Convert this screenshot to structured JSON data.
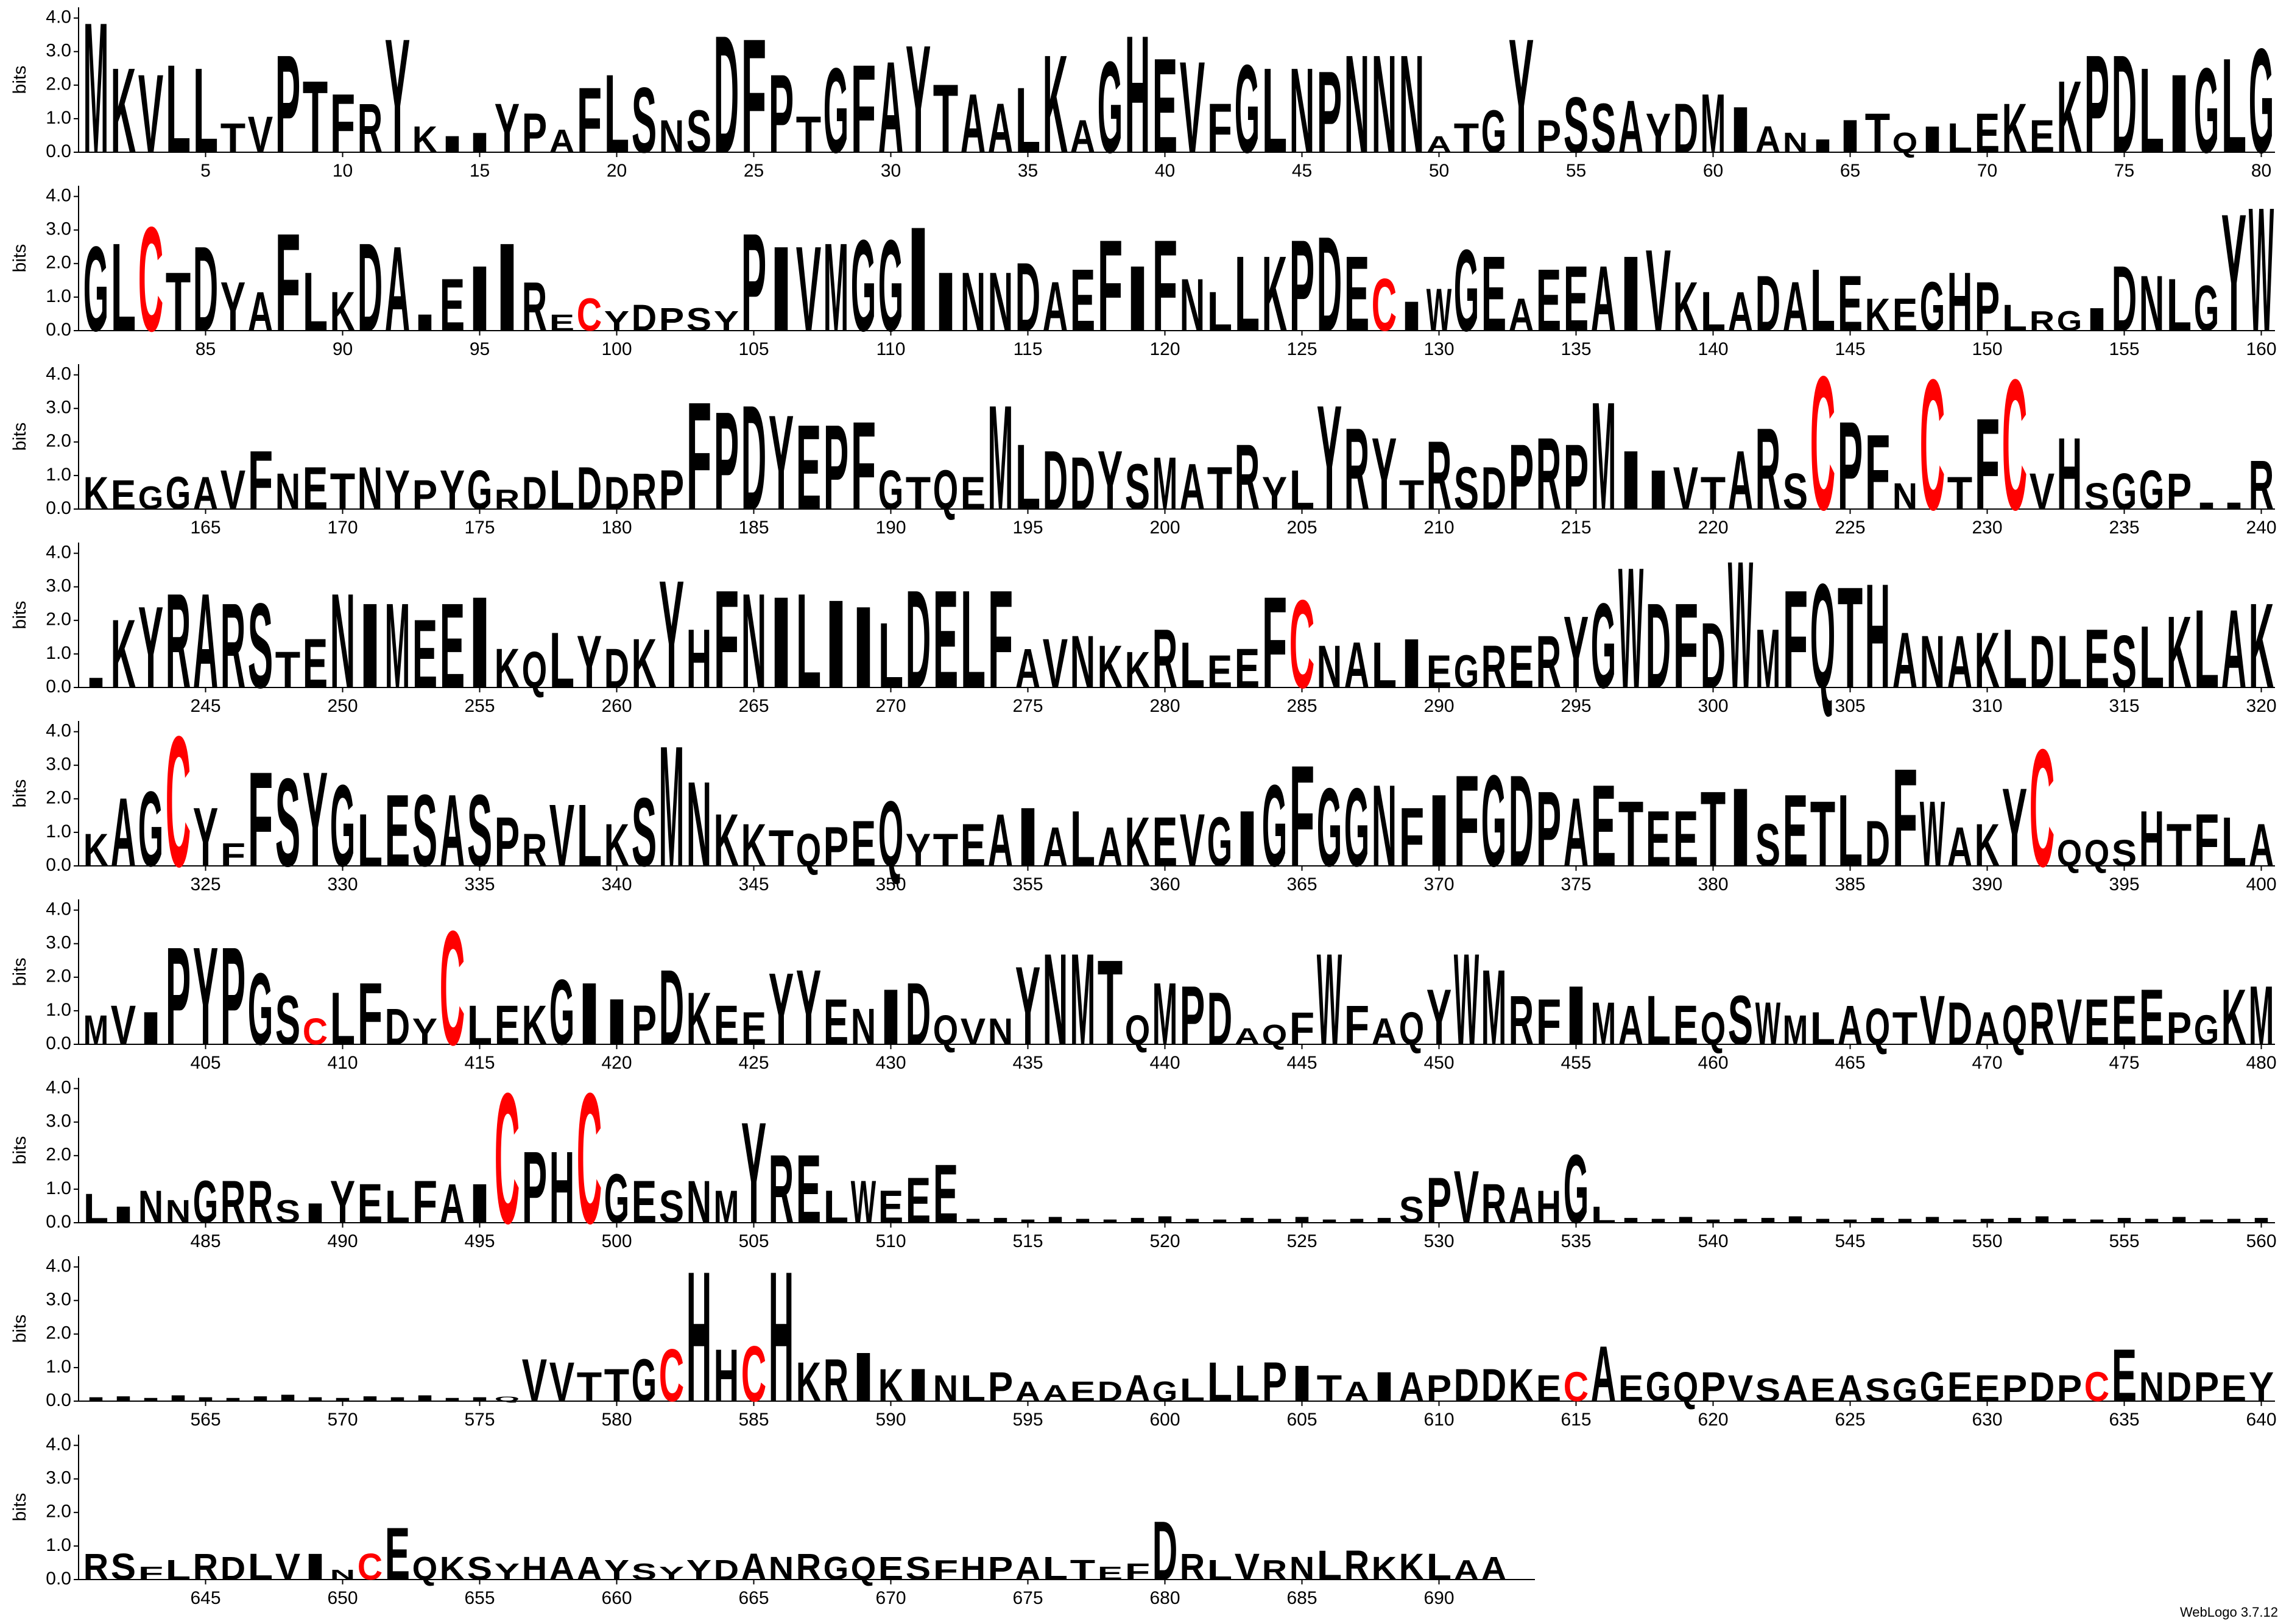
{
  "chart_data": {
    "type": "logo",
    "ylabel": "bits",
    "footer": "WebLogo 3.7.12",
    "ylim": [
      0,
      4.32
    ],
    "yticks": [
      {
        "value": 0,
        "label": "0.0"
      },
      {
        "value": 1,
        "label": "1.0"
      },
      {
        "value": 2,
        "label": "2.0"
      },
      {
        "value": 3,
        "label": "3.0"
      },
      {
        "value": 4,
        "label": "4.0"
      }
    ],
    "xticks": [
      5,
      10,
      15,
      20,
      25,
      30,
      35,
      40,
      45,
      50,
      55,
      60,
      65,
      70,
      75,
      80,
      85,
      90,
      95,
      100,
      105,
      110,
      115,
      120,
      125,
      130,
      135,
      140,
      145,
      150,
      155,
      160,
      165,
      170,
      175,
      180,
      185,
      190,
      195,
      200,
      205,
      210,
      215,
      220,
      225,
      230,
      235,
      240,
      245,
      250,
      255,
      260,
      265,
      270,
      275,
      280,
      285,
      290,
      295,
      300,
      305,
      310,
      315,
      320,
      325,
      330,
      335,
      340,
      345,
      350,
      355,
      360,
      365,
      370,
      375,
      380,
      385,
      390,
      395,
      400,
      405,
      410,
      415,
      420,
      425,
      430,
      435,
      440,
      445,
      450,
      455,
      460,
      465,
      470,
      475,
      480,
      485,
      490,
      495,
      500,
      505,
      510,
      515,
      520,
      525,
      530,
      535,
      540,
      545,
      550,
      555,
      560,
      565,
      570,
      575,
      580,
      585,
      590,
      595,
      600,
      605,
      610,
      615,
      620,
      625,
      630,
      635,
      640,
      645,
      650,
      655,
      660,
      665,
      670,
      675,
      680,
      685,
      690
    ],
    "color": "#000000",
    "highlight": {
      "letter": "C",
      "color": "#ff0000"
    },
    "sequence": "MKVLLTVPTFRYKIIYPAFLSNSDFPTGFAYTAALKAGHEVFGLNPNNNATGYPSSAYDMIANIITQILEKEKPDLIGLGGLCTDYAFLKDAIEIIRECYDPSYPIVMGGIINNDAEFIFNLLKPDECIWGEAEEAIVKLADALEKEGHPLRGIDNLGYWKEGGAVFNETNYPYGRDLDDRPFPDYEPFGTQEMLDDYSMATRYLYRYTRSDPRPMIIVTARSCPFNCTFCVHSGGPIIRIKYRARSTENIMEEIKQLYDKYHFNILIILDELFAVNKKRLEEFCNALIEGRERYGWDFDWMFQTHANAKLDLESLKLAKKAGCYFFSYGLESASPRVLKSMNKKTQPEQYTEAIALAKEVGIGFGGNFIFGDPAETEETISETLDFWAKYCQQSHTFLAMVIPYPGSCLFDYCLEKGIIPDKEEYYENIDQVNYNMTQMPDAQFWFAQYWMRFIMALEQSWMLAQTVDAQRVEEEPGKMLINNGRRSIYELFAICPHCGESNMYRELWEEEIIIIIIIIIIIIIIIISPVRAHGLIIIIIIIIIIIIIIIIIIIIIIIIIIIIIIIIIIIIIIIQVVTTGCHHCHKRIKINLPAAEDAGLLLPITAIAPDDKECAEGQPVSAEASGGEEPDPCENDPEYRSFLRDLVINCEQKSYHAAYSYYDANRGQESFHPALTEFDRLVRNLRKKLAA",
    "values": [
      4.0,
      2.6,
      2.4,
      2.7,
      2.6,
      0.9,
      1.1,
      3.0,
      2.2,
      1.8,
      1.5,
      3.5,
      0.8,
      0.5,
      0.6,
      1.5,
      1.2,
      0.7,
      2.0,
      2.4,
      2.0,
      1.0,
      1.3,
      3.6,
      3.5,
      2.4,
      1.1,
      2.6,
      2.7,
      2.8,
      3.3,
      2.1,
      1.8,
      1.5,
      2.0,
      3.0,
      1.0,
      2.8,
      3.6,
      2.9,
      2.8,
      1.5,
      2.7,
      2.6,
      2.6,
      2.5,
      3.0,
      3.0,
      3.0,
      0.5,
      0.9,
      1.3,
      3.5,
      1.0,
      1.7,
      1.5,
      1.6,
      1.2,
      1.5,
      1.8,
      1.4,
      0.8,
      0.6,
      0.4,
      1.0,
      1.2,
      0.6,
      0.8,
      0.9,
      1.2,
      1.5,
      1.0,
      2.2,
      3.0,
      3.0,
      2.6,
      2.4,
      2.6,
      2.9,
      3.2,
      2.6,
      2.7,
      3.2,
      1.8,
      2.6,
      1.5,
      1.2,
      3.0,
      1.8,
      1.2,
      2.7,
      2.6,
      0.5,
      1.6,
      2.0,
      2.7,
      1.5,
      0.5,
      1.0,
      0.6,
      0.8,
      0.7,
      0.7,
      0.6,
      3.0,
      2.6,
      2.6,
      2.7,
      2.8,
      2.8,
      3.2,
      1.8,
      1.8,
      1.8,
      2.1,
      1.5,
      1.9,
      2.8,
      2.0,
      2.8,
      1.6,
      1.2,
      2.3,
      2.3,
      2.8,
      2.9,
      2.3,
      1.6,
      0.9,
      1.3,
      2.5,
      2.3,
      1.0,
      1.9,
      2.0,
      2.0,
      2.3,
      2.5,
      1.5,
      1.2,
      1.2,
      1.7,
      1.5,
      1.9,
      1.7,
      1.0,
      1.0,
      1.5,
      1.8,
      1.5,
      0.8,
      0.6,
      0.6,
      0.7,
      2.0,
      1.7,
      1.6,
      1.4,
      3.6,
      3.8,
      1.0,
      0.9,
      0.7,
      1.0,
      1.0,
      1.2,
      1.8,
      1.1,
      1.3,
      1.1,
      1.3,
      1.2,
      0.9,
      1.2,
      1.2,
      0.6,
      1.0,
      1.2,
      1.3,
      1.0,
      1.1,
      1.2,
      3.3,
      3.0,
      3.2,
      2.9,
      2.6,
      2.6,
      2.7,
      1.2,
      1.0,
      1.2,
      1.0,
      3.2,
      2.0,
      1.8,
      1.6,
      1.8,
      1.4,
      1.6,
      1.4,
      1.3,
      2.0,
      1.0,
      1.2,
      3.2,
      2.5,
      2.2,
      0.9,
      2.1,
      1.3,
      1.3,
      2.0,
      2.2,
      2.0,
      3.3,
      1.8,
      1.2,
      1.3,
      1.0,
      1.8,
      2.5,
      1.1,
      4.1,
      2.7,
      2.3,
      0.8,
      4.0,
      1.0,
      2.8,
      4.0,
      1.1,
      2.2,
      0.8,
      1.1,
      1.2,
      1.1,
      0.2,
      0.2,
      1.5,
      0.3,
      2.1,
      2.5,
      2.9,
      2.9,
      2.6,
      2.6,
      1.1,
      1.5,
      2.9,
      2.6,
      2.6,
      2.1,
      2.6,
      2.8,
      1.2,
      1.1,
      1.7,
      1.6,
      1.2,
      1.5,
      3.3,
      1.8,
      3.0,
      2.9,
      2.8,
      2.9,
      2.7,
      2.5,
      2.0,
      3.0,
      3.0,
      3.0,
      3.0,
      1.2,
      1.5,
      1.6,
      1.3,
      1.1,
      1.8,
      1.4,
      1.0,
      1.2,
      2.8,
      2.7,
      1.3,
      1.4,
      1.4,
      1.5,
      1.0,
      1.0,
      1.3,
      1.3,
      1.6,
      2.2,
      2.6,
      3.7,
      2.6,
      2.6,
      2.0,
      3.9,
      1.8,
      3.0,
      3.2,
      3.1,
      3.2,
      1.7,
      1.6,
      1.6,
      1.7,
      1.8,
      1.6,
      1.6,
      1.8,
      1.6,
      1.9,
      2.2,
      2.4,
      2.4,
      2.6,
      1.0,
      2.1,
      2.3,
      4.0,
      1.8,
      0.7,
      2.9,
      2.7,
      2.9,
      2.5,
      1.6,
      2.2,
      2.2,
      2.2,
      2.2,
      1.5,
      1.0,
      1.9,
      1.9,
      1.3,
      2.1,
      3.7,
      2.6,
      1.6,
      1.3,
      1.1,
      1.0,
      1.2,
      1.4,
      2.0,
      1.0,
      1.0,
      1.3,
      1.6,
      1.8,
      1.2,
      1.7,
      1.2,
      1.5,
      1.5,
      1.6,
      1.5,
      1.7,
      2.5,
      3.1,
      2.4,
      2.4,
      2.5,
      1.8,
      2.2,
      2.8,
      2.8,
      2.8,
      2.3,
      2.1,
      2.5,
      2.0,
      1.7,
      1.7,
      2.3,
      2.4,
      1.3,
      2.2,
      2.0,
      2.2,
      1.4,
      3.0,
      2.0,
      1.2,
      1.3,
      2.4,
      3.6,
      0.8,
      0.8,
      0.8,
      1.7,
      1.3,
      1.6,
      1.5,
      1.3,
      0.9,
      1.2,
      1.0,
      3.0,
      3.0,
      3.0,
      2.2,
      1.5,
      0.8,
      1.6,
      1.9,
      1.1,
      0.8,
      3.5,
      1.2,
      1.2,
      1.2,
      2.0,
      1.9,
      1.4,
      1.2,
      2.3,
      1.6,
      1.2,
      1.0,
      2.2,
      2.3,
      1.4,
      1.1,
      1.7,
      1.9,
      0.9,
      0.8,
      0.8,
      2.4,
      2.8,
      2.8,
      2.6,
      0.9,
      1.9,
      1.8,
      1.6,
      0.5,
      0.6,
      1.0,
      2.8,
      1.2,
      0.8,
      1.0,
      1.7,
      2.8,
      2.3,
      1.5,
      1.4,
      1.8,
      1.3,
      1.2,
      1.5,
      1.2,
      1.0,
      1.5,
      1.3,
      0.9,
      1.0,
      1.2,
      1.1,
      1.0,
      1.5,
      1.3,
      1.0,
      1.2,
      1.3,
      1.4,
      1.4,
      1.5,
      1.7,
      1.0,
      0.9,
      1.7,
      1.8,
      0.9,
      0.5,
      1.0,
      0.7,
      1.3,
      1.3,
      1.3,
      0.7,
      0.6,
      1.3,
      1.2,
      1.0,
      1.3,
      1.2,
      1.2,
      4.0,
      2.2,
      2.2,
      4.0,
      1.5,
      1.3,
      1.0,
      1.3,
      1.0,
      3.1,
      2.1,
      2.1,
      1.0,
      1.3,
      1.0,
      1.4,
      1.8,
      0.12,
      0.15,
      0.1,
      0.18,
      0.12,
      0.1,
      0.15,
      0.2,
      0.12,
      0.1,
      0.15,
      0.12,
      0.18,
      0.1,
      0.12,
      0.15,
      0.8,
      1.4,
      1.6,
      1.2,
      1.1,
      1.0,
      2.1,
      0.5,
      0.15,
      0.12,
      0.18,
      0.1,
      0.12,
      0.15,
      0.2,
      0.12,
      0.1,
      0.15,
      0.12,
      0.18,
      0.1,
      0.12,
      0.15,
      0.2,
      0.12,
      0.1,
      0.15,
      0.12,
      0.18,
      0.1,
      0.12,
      0.15,
      0.12,
      0.15,
      0.1,
      0.18,
      0.12,
      0.1,
      0.15,
      0.2,
      0.12,
      0.1,
      0.15,
      0.12,
      0.18,
      0.1,
      0.12,
      0.15,
      1.3,
      1.2,
      0.9,
      1.0,
      1.3,
      1.6,
      4.0,
      1.6,
      1.7,
      4.0,
      1.2,
      1.3,
      1.5,
      1.0,
      1.0,
      0.8,
      0.8,
      0.9,
      0.6,
      0.5,
      0.6,
      0.6,
      0.8,
      0.6,
      0.7,
      1.2,
      1.1,
      1.2,
      1.1,
      0.8,
      0.6,
      0.9,
      0.9,
      0.8,
      1.0,
      1.0,
      1.0,
      0.8,
      0.9,
      1.7,
      0.8,
      0.9,
      0.9,
      0.9,
      0.8,
      0.7,
      0.8,
      0.7,
      0.8,
      0.7,
      0.7,
      0.9,
      0.9,
      0.8,
      0.8,
      0.9,
      0.8,
      0.9,
      1.6,
      0.9,
      0.9,
      0.9,
      0.8,
      0.9,
      0.8,
      0.8,
      0.4,
      0.6,
      0.8,
      0.7,
      0.8,
      0.8,
      0.8,
      0.3,
      0.8,
      1.6,
      0.7,
      0.7,
      0.7,
      0.5,
      0.7,
      0.7,
      0.7,
      0.6,
      0.5,
      0.4,
      0.6,
      0.6,
      0.8,
      0.7,
      0.8,
      0.7,
      0.7,
      0.7,
      0.7,
      0.6,
      0.7,
      0.7,
      0.7,
      0.7,
      0.6,
      0.4,
      0.5,
      1.8,
      0.8,
      0.6,
      0.8,
      0.6,
      0.7,
      0.9,
      0.9,
      0.7,
      0.8,
      0.8,
      0.6,
      0.7,
      0.8
    ]
  }
}
